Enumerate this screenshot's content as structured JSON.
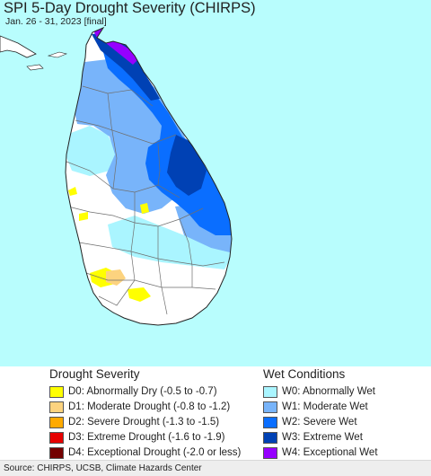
{
  "header": {
    "title": "SPI 5-Day Drought Severity (CHIRPS)",
    "subtitle": "Jan. 26 - 31, 2023 [final]"
  },
  "colors": {
    "ocean": "#b8fdfd",
    "land_normal": "#ffffff",
    "border": "#6f6f6f",
    "coast": "#222222"
  },
  "legend": {
    "drought": {
      "heading": "Drought Severity",
      "items": [
        {
          "label": "D0: Abnormally Dry (-0.5 to -0.7)",
          "color": "#ffff00"
        },
        {
          "label": "D1: Moderate Drought (-0.8 to -1.2)",
          "color": "#fcd37f"
        },
        {
          "label": "D2: Severe Drought (-1.3 to -1.5)",
          "color": "#ffaa00"
        },
        {
          "label": "D3: Extreme Drought (-1.6 to -1.9)",
          "color": "#e60000"
        },
        {
          "label": "D4: Exceptional Drought (-2.0 or less)",
          "color": "#730000"
        }
      ]
    },
    "wet": {
      "heading": "Wet Conditions",
      "items": [
        {
          "label": "W0: Abnormally Wet",
          "color": "#aaf5ff"
        },
        {
          "label": "W1: Moderate Wet",
          "color": "#78b4fa"
        },
        {
          "label": "W2: Severe Wet",
          "color": "#0a6eff"
        },
        {
          "label": "W3: Extreme Wet",
          "color": "#0041b4"
        },
        {
          "label": "W4: Exceptional Wet",
          "color": "#9600ff"
        }
      ]
    }
  },
  "footer": {
    "source": "Source: CHIRPS, UCSB, Climate Hazards Center"
  }
}
